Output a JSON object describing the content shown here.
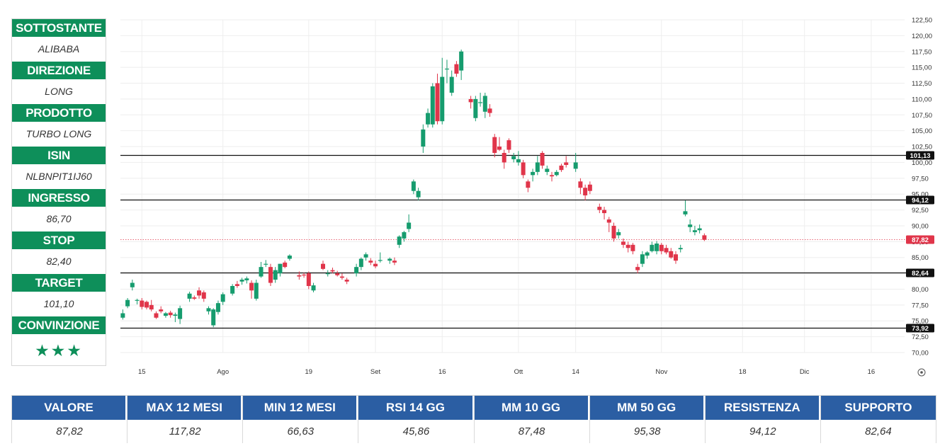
{
  "info_panel": {
    "rows": [
      {
        "label": "SOTTOSTANTE",
        "value": "ALIBABA"
      },
      {
        "label": "DIREZIONE",
        "value": "LONG"
      },
      {
        "label": "PRODOTTO",
        "value": "TURBO LONG"
      },
      {
        "label": "ISIN",
        "value": "NLBNPIT1IJ60"
      },
      {
        "label": "INGRESSO",
        "value": "86,70"
      },
      {
        "label": "STOP",
        "value": "82,40"
      },
      {
        "label": "TARGET",
        "value": "101,10"
      }
    ],
    "conviction_label": "CONVINZIONE",
    "conviction_stars": "★★★",
    "conviction_rating": 3
  },
  "stats": [
    {
      "label": "VALORE",
      "value": "87,82"
    },
    {
      "label": "MAX 12 MESI",
      "value": "117,82"
    },
    {
      "label": "MIN 12 MESI",
      "value": "66,63"
    },
    {
      "label": "RSI 14 GG",
      "value": "45,86"
    },
    {
      "label": "MM 10 GG",
      "value": "87,48"
    },
    {
      "label": "MM 50 GG",
      "value": "95,38"
    },
    {
      "label": "RESISTENZA",
      "value": "94,12"
    },
    {
      "label": "SUPPORTO",
      "value": "82,64"
    }
  ],
  "colors": {
    "up": "#169c6e",
    "down": "#e0354a",
    "info_header": "#0e8f5a",
    "table_header": "#2b5ea3",
    "level_line": "#111111",
    "current_price": "#e0354a"
  },
  "chart_data": {
    "type": "candlestick",
    "ylim": [
      70,
      122.5
    ],
    "y_ticks": [
      "70,00",
      "72,50",
      "75,00",
      "77,50",
      "80,00",
      "82,50",
      "85,00",
      "87,50",
      "90,00",
      "92,50",
      "95,00",
      "97,50",
      "100,00",
      "102,50",
      "105,00",
      "107,50",
      "110,00",
      "112,50",
      "115,00",
      "117,50",
      "120,00",
      "122,50"
    ],
    "x_ticks": [
      {
        "label": "15",
        "day": 2
      },
      {
        "label": "Ago",
        "day": 19
      },
      {
        "label": "19",
        "day": 37
      },
      {
        "label": "Set",
        "day": 51
      },
      {
        "label": "16",
        "day": 65
      },
      {
        "label": "Ott",
        "day": 81
      },
      {
        "label": "14",
        "day": 93
      },
      {
        "label": "Nov",
        "day": 111
      },
      {
        "label": "18",
        "day": 128
      },
      {
        "label": "Dic",
        "day": 141
      },
      {
        "label": "16",
        "day": 155
      }
    ],
    "xlim": [
      -2.5,
      162
    ],
    "levels": [
      {
        "value": 101.13,
        "label": "101,13"
      },
      {
        "value": 94.12,
        "label": "94,12"
      },
      {
        "value": 82.64,
        "label": "82,64"
      },
      {
        "value": 73.92,
        "label": "73,92"
      }
    ],
    "current_price": {
      "value": 87.82,
      "label": "87,82"
    },
    "candles": [
      {
        "d": -2,
        "o": 75.5,
        "h": 76.8,
        "l": 75.2,
        "c": 76.2
      },
      {
        "d": -1,
        "o": 77.3,
        "h": 78.6,
        "l": 77.0,
        "c": 78.3
      },
      {
        "d": 0,
        "o": 80.3,
        "h": 81.5,
        "l": 79.8,
        "c": 81.0
      },
      {
        "d": 1,
        "o": 78.3,
        "h": 78.5,
        "l": 77.6,
        "c": 78.3
      },
      {
        "d": 2,
        "o": 78.2,
        "h": 78.6,
        "l": 76.8,
        "c": 77.2
      },
      {
        "d": 3,
        "o": 78.0,
        "h": 78.2,
        "l": 76.8,
        "c": 77.1
      },
      {
        "d": 4,
        "o": 77.5,
        "h": 78.3,
        "l": 76.5,
        "c": 76.8
      },
      {
        "d": 5,
        "o": 76.2,
        "h": 76.5,
        "l": 75.3,
        "c": 75.5
      },
      {
        "d": 6,
        "o": 76.8,
        "h": 77.3,
        "l": 76.2,
        "c": 76.5
      },
      {
        "d": 7,
        "o": 75.8,
        "h": 76.4,
        "l": 75.5,
        "c": 76.2
      },
      {
        "d": 8,
        "o": 76.3,
        "h": 76.6,
        "l": 75.5,
        "c": 75.9
      },
      {
        "d": 9,
        "o": 75.8,
        "h": 76.3,
        "l": 74.8,
        "c": 76.0
      },
      {
        "d": 10,
        "o": 75.3,
        "h": 77.4,
        "l": 74.5,
        "c": 77.0
      },
      {
        "d": 12,
        "o": 78.5,
        "h": 79.6,
        "l": 78.0,
        "c": 79.3
      },
      {
        "d": 13,
        "o": 78.7,
        "h": 79.0,
        "l": 78.3,
        "c": 78.5
      },
      {
        "d": 14,
        "o": 79.8,
        "h": 80.3,
        "l": 78.5,
        "c": 79.0
      },
      {
        "d": 15,
        "o": 79.5,
        "h": 79.8,
        "l": 78.0,
        "c": 78.5
      },
      {
        "d": 16,
        "o": 76.5,
        "h": 77.3,
        "l": 76.0,
        "c": 77.0
      },
      {
        "d": 17,
        "o": 74.3,
        "h": 77.0,
        "l": 74.0,
        "c": 76.8
      },
      {
        "d": 18,
        "o": 76.4,
        "h": 78.2,
        "l": 76.0,
        "c": 77.8
      },
      {
        "d": 19,
        "o": 78.0,
        "h": 79.5,
        "l": 77.5,
        "c": 79.2
      },
      {
        "d": 21,
        "o": 79.3,
        "h": 80.8,
        "l": 79.0,
        "c": 80.5
      },
      {
        "d": 22,
        "o": 80.8,
        "h": 81.3,
        "l": 80.2,
        "c": 80.5
      },
      {
        "d": 23,
        "o": 81.2,
        "h": 81.8,
        "l": 80.7,
        "c": 81.5
      },
      {
        "d": 24,
        "o": 81.4,
        "h": 82.0,
        "l": 80.9,
        "c": 81.7
      },
      {
        "d": 25,
        "o": 81.0,
        "h": 81.4,
        "l": 78.5,
        "c": 79.8
      },
      {
        "d": 26,
        "o": 78.5,
        "h": 81.5,
        "l": 78.2,
        "c": 81.0
      },
      {
        "d": 27,
        "o": 82.0,
        "h": 84.3,
        "l": 81.8,
        "c": 83.5
      },
      {
        "d": 28,
        "o": 84.0,
        "h": 84.6,
        "l": 83.5,
        "c": 84.0
      },
      {
        "d": 29,
        "o": 83.5,
        "h": 84.0,
        "l": 80.5,
        "c": 81.0
      },
      {
        "d": 30,
        "o": 81.5,
        "h": 83.5,
        "l": 81.0,
        "c": 83.0
      },
      {
        "d": 31,
        "o": 82.5,
        "h": 84.0,
        "l": 82.0,
        "c": 84.0
      },
      {
        "d": 32,
        "o": 84.2,
        "h": 84.5,
        "l": 83.3,
        "c": 83.5
      },
      {
        "d": 33,
        "o": 84.8,
        "h": 85.5,
        "l": 84.5,
        "c": 85.3
      },
      {
        "d": 35,
        "o": 82.2,
        "h": 82.8,
        "l": 81.5,
        "c": 82.0
      },
      {
        "d": 36,
        "o": 82.3,
        "h": 82.6,
        "l": 81.8,
        "c": 82.2
      },
      {
        "d": 37,
        "o": 82.5,
        "h": 82.8,
        "l": 80.0,
        "c": 80.5
      },
      {
        "d": 38,
        "o": 79.8,
        "h": 81.0,
        "l": 79.5,
        "c": 80.6
      },
      {
        "d": 40,
        "o": 84.0,
        "h": 84.5,
        "l": 83.0,
        "c": 83.2
      },
      {
        "d": 41,
        "o": 82.5,
        "h": 83.0,
        "l": 82.0,
        "c": 82.5
      },
      {
        "d": 42,
        "o": 83.0,
        "h": 83.4,
        "l": 82.5,
        "c": 82.8
      },
      {
        "d": 43,
        "o": 82.5,
        "h": 82.9,
        "l": 82.0,
        "c": 82.2
      },
      {
        "d": 44,
        "o": 82.0,
        "h": 82.5,
        "l": 81.5,
        "c": 81.8
      },
      {
        "d": 45,
        "o": 81.5,
        "h": 81.8,
        "l": 80.8,
        "c": 81.2
      },
      {
        "d": 47,
        "o": 82.5,
        "h": 84.0,
        "l": 82.0,
        "c": 83.5
      },
      {
        "d": 48,
        "o": 83.5,
        "h": 85.0,
        "l": 83.0,
        "c": 84.8
      },
      {
        "d": 49,
        "o": 85.0,
        "h": 85.8,
        "l": 84.5,
        "c": 85.5
      },
      {
        "d": 50,
        "o": 84.5,
        "h": 84.9,
        "l": 83.8,
        "c": 84.2
      },
      {
        "d": 51,
        "o": 84.0,
        "h": 84.5,
        "l": 83.3,
        "c": 83.6
      },
      {
        "d": 52,
        "o": 84.5,
        "h": 85.8,
        "l": 84.2,
        "c": 84.6
      },
      {
        "d": 54,
        "o": 84.5,
        "h": 85.0,
        "l": 84.0,
        "c": 84.8
      },
      {
        "d": 55,
        "o": 84.5,
        "h": 85.0,
        "l": 83.8,
        "c": 84.2
      },
      {
        "d": 56,
        "o": 87.0,
        "h": 88.5,
        "l": 86.5,
        "c": 88.3
      },
      {
        "d": 57,
        "o": 88.0,
        "h": 89.2,
        "l": 87.5,
        "c": 89.0
      },
      {
        "d": 58,
        "o": 89.5,
        "h": 91.8,
        "l": 89.0,
        "c": 90.5
      },
      {
        "d": 59,
        "o": 95.5,
        "h": 97.3,
        "l": 95.0,
        "c": 97.0
      },
      {
        "d": 60,
        "o": 94.5,
        "h": 96.0,
        "l": 94.0,
        "c": 95.5
      },
      {
        "d": 61,
        "o": 102.5,
        "h": 106.0,
        "l": 101.5,
        "c": 105.2
      },
      {
        "d": 62,
        "o": 106.0,
        "h": 108.5,
        "l": 105.5,
        "c": 107.8
      },
      {
        "d": 63,
        "o": 106.0,
        "h": 112.5,
        "l": 105.5,
        "c": 112.0
      },
      {
        "d": 64,
        "o": 112.5,
        "h": 114.0,
        "l": 106.0,
        "c": 106.5
      },
      {
        "d": 65,
        "o": 106.5,
        "h": 116.5,
        "l": 106.0,
        "c": 113.5
      },
      {
        "d": 66,
        "o": 114.8,
        "h": 116.2,
        "l": 112.5,
        "c": 114.8
      },
      {
        "d": 67,
        "o": 111.0,
        "h": 114.5,
        "l": 110.5,
        "c": 113.5
      },
      {
        "d": 68,
        "o": 115.5,
        "h": 116.0,
        "l": 113.5,
        "c": 114.0
      },
      {
        "d": 69,
        "o": 114.5,
        "h": 117.8,
        "l": 113.0,
        "c": 117.5
      },
      {
        "d": 71,
        "o": 110.0,
        "h": 110.5,
        "l": 108.5,
        "c": 109.5
      },
      {
        "d": 72,
        "o": 107.0,
        "h": 110.5,
        "l": 106.5,
        "c": 110.0
      },
      {
        "d": 73,
        "o": 109.5,
        "h": 111.0,
        "l": 108.8,
        "c": 109.5
      },
      {
        "d": 74,
        "o": 108.0,
        "h": 111.0,
        "l": 107.0,
        "c": 110.5
      },
      {
        "d": 75,
        "o": 108.5,
        "h": 109.2,
        "l": 107.2,
        "c": 107.8
      },
      {
        "d": 76,
        "o": 104.0,
        "h": 104.5,
        "l": 100.8,
        "c": 101.5
      },
      {
        "d": 77,
        "o": 102.5,
        "h": 104.0,
        "l": 101.8,
        "c": 102.0
      },
      {
        "d": 78,
        "o": 101.5,
        "h": 102.0,
        "l": 99.0,
        "c": 100.0
      },
      {
        "d": 79,
        "o": 103.5,
        "h": 103.8,
        "l": 101.5,
        "c": 102.0
      },
      {
        "d": 80,
        "o": 100.5,
        "h": 101.5,
        "l": 100.0,
        "c": 101.0
      },
      {
        "d": 81,
        "o": 100.0,
        "h": 101.8,
        "l": 99.5,
        "c": 100.5
      },
      {
        "d": 82,
        "o": 100.0,
        "h": 100.4,
        "l": 97.5,
        "c": 98.0
      },
      {
        "d": 83,
        "o": 97.0,
        "h": 97.3,
        "l": 95.3,
        "c": 96.0
      },
      {
        "d": 84,
        "o": 98.0,
        "h": 99.0,
        "l": 97.0,
        "c": 98.5
      },
      {
        "d": 85,
        "o": 98.5,
        "h": 101.0,
        "l": 98.0,
        "c": 100.0
      },
      {
        "d": 86,
        "o": 101.5,
        "h": 101.8,
        "l": 99.0,
        "c": 99.5
      },
      {
        "d": 87,
        "o": 98.5,
        "h": 99.5,
        "l": 98.0,
        "c": 99.0
      },
      {
        "d": 88,
        "o": 98.0,
        "h": 98.5,
        "l": 97.0,
        "c": 97.8
      },
      {
        "d": 89,
        "o": 98.0,
        "h": 98.8,
        "l": 97.8,
        "c": 98.5
      },
      {
        "d": 90,
        "o": 99.5,
        "h": 99.8,
        "l": 98.5,
        "c": 98.8
      },
      {
        "d": 91,
        "o": 100.0,
        "h": 101.0,
        "l": 99.2,
        "c": 99.6
      },
      {
        "d": 93,
        "o": 99.0,
        "h": 101.5,
        "l": 98.5,
        "c": 100.0
      },
      {
        "d": 94,
        "o": 97.0,
        "h": 97.5,
        "l": 95.0,
        "c": 96.0
      },
      {
        "d": 95,
        "o": 96.0,
        "h": 96.5,
        "l": 94.0,
        "c": 94.8
      },
      {
        "d": 96,
        "o": 96.5,
        "h": 97.0,
        "l": 95.0,
        "c": 95.5
      },
      {
        "d": 98,
        "o": 93.0,
        "h": 93.5,
        "l": 92.0,
        "c": 92.5
      },
      {
        "d": 99,
        "o": 92.5,
        "h": 93.0,
        "l": 91.0,
        "c": 92.0
      },
      {
        "d": 100,
        "o": 91.0,
        "h": 91.4,
        "l": 89.0,
        "c": 90.5
      },
      {
        "d": 101,
        "o": 90.0,
        "h": 90.5,
        "l": 87.5,
        "c": 88.0
      },
      {
        "d": 102,
        "o": 88.5,
        "h": 89.5,
        "l": 88.0,
        "c": 89.0
      },
      {
        "d": 103,
        "o": 87.5,
        "h": 88.0,
        "l": 86.5,
        "c": 87.0
      },
      {
        "d": 104,
        "o": 87.0,
        "h": 87.5,
        "l": 85.8,
        "c": 86.5
      },
      {
        "d": 105,
        "o": 87.0,
        "h": 87.3,
        "l": 85.5,
        "c": 86.0
      },
      {
        "d": 106,
        "o": 83.5,
        "h": 84.0,
        "l": 82.5,
        "c": 83.0
      },
      {
        "d": 107,
        "o": 84.0,
        "h": 86.0,
        "l": 83.5,
        "c": 85.5
      },
      {
        "d": 108,
        "o": 85.3,
        "h": 86.0,
        "l": 84.8,
        "c": 85.8
      },
      {
        "d": 109,
        "o": 86.0,
        "h": 87.5,
        "l": 85.8,
        "c": 87.0
      },
      {
        "d": 110,
        "o": 86.0,
        "h": 87.6,
        "l": 85.5,
        "c": 87.2
      },
      {
        "d": 111,
        "o": 87.0,
        "h": 87.3,
        "l": 85.5,
        "c": 86.0
      },
      {
        "d": 112,
        "o": 86.5,
        "h": 87.0,
        "l": 85.5,
        "c": 85.8
      },
      {
        "d": 113,
        "o": 86.0,
        "h": 86.5,
        "l": 84.8,
        "c": 85.0
      },
      {
        "d": 114,
        "o": 85.5,
        "h": 86.0,
        "l": 84.0,
        "c": 84.5
      },
      {
        "d": 115,
        "o": 86.3,
        "h": 87.0,
        "l": 85.8,
        "c": 86.5
      },
      {
        "d": 116,
        "o": 91.8,
        "h": 94.0,
        "l": 91.5,
        "c": 92.3
      },
      {
        "d": 117,
        "o": 89.8,
        "h": 91.0,
        "l": 89.0,
        "c": 90.2
      },
      {
        "d": 118,
        "o": 89.0,
        "h": 90.0,
        "l": 88.5,
        "c": 89.3
      },
      {
        "d": 119,
        "o": 89.3,
        "h": 90.2,
        "l": 88.8,
        "c": 89.6
      },
      {
        "d": 120,
        "o": 88.5,
        "h": 88.8,
        "l": 87.6,
        "c": 87.8
      }
    ]
  }
}
